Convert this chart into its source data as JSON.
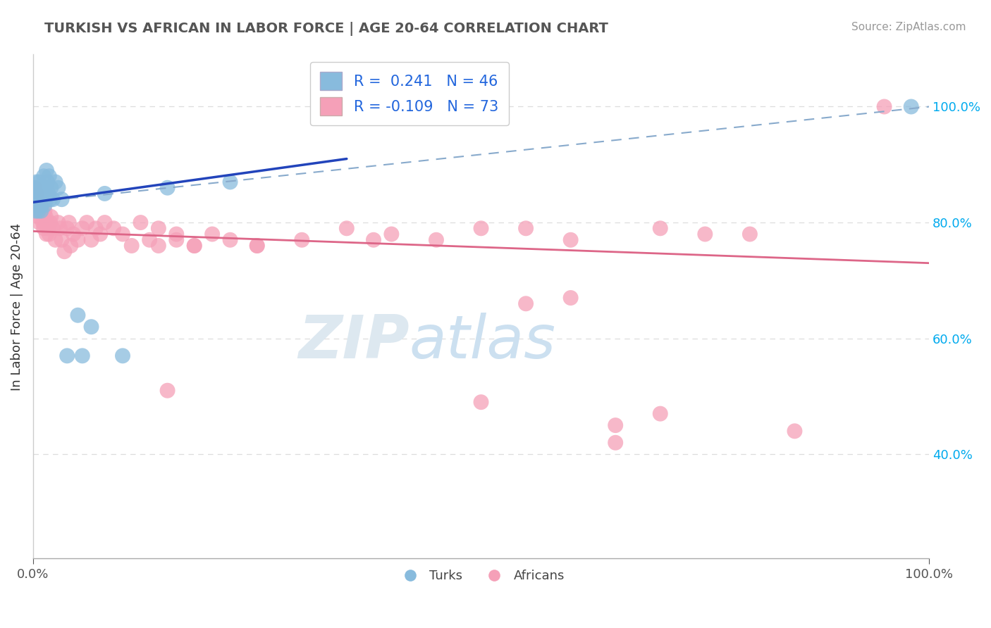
{
  "title": "TURKISH VS AFRICAN IN LABOR FORCE | AGE 20-64 CORRELATION CHART",
  "source_text": "Source: ZipAtlas.com",
  "ylabel": "In Labor Force | Age 20-64",
  "y_ticks": [
    0.4,
    0.6,
    0.8,
    1.0
  ],
  "y_tick_labels": [
    "40.0%",
    "60.0%",
    "80.0%",
    "100.0%"
  ],
  "turks_color": "#88bbdd",
  "africans_color": "#f5a0b8",
  "blue_line_color": "#2244bb",
  "pink_line_color": "#dd6688",
  "dashed_line_color": "#88aacc",
  "grid_color": "#dddddd",
  "title_color": "#555555",
  "source_color": "#999999",
  "legend_r_color": "#2266dd",
  "turks_R": "0.241",
  "turks_N": "46",
  "africans_R": "-0.109",
  "africans_N": "73",
  "blue_line_x0": 0.0,
  "blue_line_y0": 0.835,
  "blue_line_x1": 0.35,
  "blue_line_y1": 0.91,
  "pink_line_x0": 0.0,
  "pink_line_y0": 0.785,
  "pink_line_x1": 1.0,
  "pink_line_y1": 0.73,
  "dash_line_x0": 0.0,
  "dash_line_y0": 0.835,
  "dash_line_x1": 1.0,
  "dash_line_y1": 1.0,
  "xlim": [
    0.0,
    1.0
  ],
  "ylim": [
    0.22,
    1.09
  ],
  "turks_x": [
    0.001,
    0.002,
    0.002,
    0.003,
    0.003,
    0.004,
    0.004,
    0.005,
    0.005,
    0.006,
    0.006,
    0.007,
    0.007,
    0.008,
    0.008,
    0.009,
    0.009,
    0.01,
    0.01,
    0.01,
    0.011,
    0.012,
    0.012,
    0.013,
    0.013,
    0.014,
    0.015,
    0.015,
    0.016,
    0.017,
    0.018,
    0.019,
    0.02,
    0.022,
    0.025,
    0.028,
    0.032,
    0.038,
    0.05,
    0.055,
    0.065,
    0.08,
    0.1,
    0.15,
    0.22,
    0.98
  ],
  "turks_y": [
    0.84,
    0.86,
    0.83,
    0.85,
    0.82,
    0.87,
    0.84,
    0.86,
    0.83,
    0.85,
    0.82,
    0.87,
    0.84,
    0.83,
    0.86,
    0.82,
    0.85,
    0.84,
    0.86,
    0.83,
    0.85,
    0.88,
    0.84,
    0.86,
    0.83,
    0.85,
    0.89,
    0.84,
    0.87,
    0.85,
    0.88,
    0.84,
    0.86,
    0.84,
    0.87,
    0.86,
    0.84,
    0.57,
    0.64,
    0.57,
    0.62,
    0.85,
    0.57,
    0.86,
    0.87,
    1.0
  ],
  "africans_x": [
    0.001,
    0.002,
    0.003,
    0.004,
    0.005,
    0.006,
    0.006,
    0.007,
    0.008,
    0.009,
    0.01,
    0.011,
    0.012,
    0.013,
    0.014,
    0.015,
    0.016,
    0.017,
    0.018,
    0.019,
    0.02,
    0.022,
    0.025,
    0.028,
    0.03,
    0.032,
    0.035,
    0.038,
    0.04,
    0.042,
    0.045,
    0.05,
    0.055,
    0.06,
    0.065,
    0.07,
    0.075,
    0.08,
    0.09,
    0.1,
    0.11,
    0.12,
    0.13,
    0.14,
    0.15,
    0.16,
    0.18,
    0.2,
    0.22,
    0.25,
    0.14,
    0.16,
    0.18,
    0.25,
    0.3,
    0.35,
    0.38,
    0.4,
    0.45,
    0.5,
    0.55,
    0.6,
    0.65,
    0.7,
    0.75,
    0.55,
    0.65,
    0.7,
    0.8,
    0.85,
    0.5,
    0.6,
    0.95
  ],
  "africans_y": [
    0.84,
    0.86,
    0.83,
    0.85,
    0.82,
    0.81,
    0.83,
    0.8,
    0.82,
    0.83,
    0.82,
    0.8,
    0.79,
    0.82,
    0.81,
    0.78,
    0.8,
    0.79,
    0.78,
    0.8,
    0.81,
    0.79,
    0.77,
    0.8,
    0.79,
    0.77,
    0.75,
    0.79,
    0.8,
    0.76,
    0.78,
    0.77,
    0.79,
    0.8,
    0.77,
    0.79,
    0.78,
    0.8,
    0.79,
    0.78,
    0.76,
    0.8,
    0.77,
    0.79,
    0.51,
    0.78,
    0.76,
    0.78,
    0.77,
    0.76,
    0.76,
    0.77,
    0.76,
    0.76,
    0.77,
    0.79,
    0.77,
    0.78,
    0.77,
    0.79,
    0.79,
    0.77,
    0.42,
    0.47,
    0.78,
    0.66,
    0.45,
    0.79,
    0.78,
    0.44,
    0.49,
    0.67,
    1.0
  ]
}
